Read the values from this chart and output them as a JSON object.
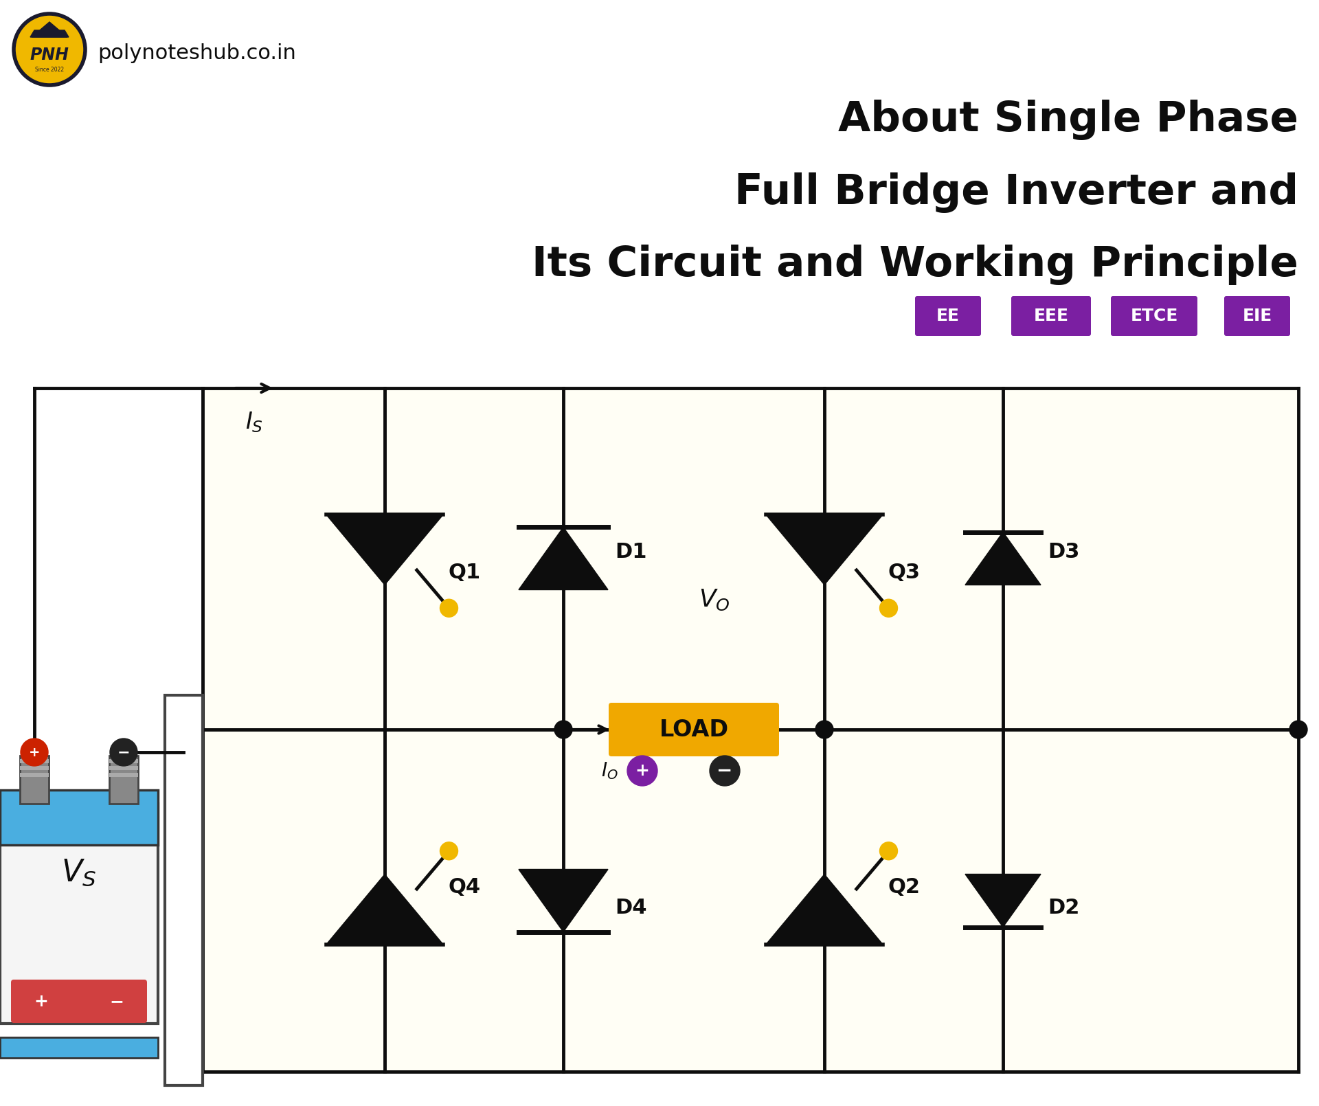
{
  "title_line1": "About Single Phase",
  "title_line2": "Full Bridge Inverter and",
  "title_line3": "Its Circuit and Working Principle",
  "title_color": "#0d0d0d",
  "title_fontsize": 44,
  "tags": [
    "EE",
    "EEE",
    "ETCE",
    "EIE"
  ],
  "tag_bg_color": "#7B1FA2",
  "tag_text_color": "#ffffff",
  "bg_color": "#ffffff",
  "circuit_bg_color": "#fffef5",
  "logo_text": "polynoteshub.co.in",
  "transistor_color": "#0d0d0d",
  "wire_color": "#0d0d0d",
  "diode_color": "#0d0d0d",
  "gate_dot_color": "#f0b800",
  "load_bg_color": "#f0a800",
  "load_text_color": "#0d0d0d",
  "vs_plus_color": "#cc2200",
  "battery_blue": "#4aaee0",
  "battery_red": "#d04040",
  "battery_body": "#e8e8e8",
  "battery_dark": "#444444",
  "Io_plus_color": "#7B1FA2",
  "Io_minus_color": "#222222",
  "wm_color": "#eeebde"
}
